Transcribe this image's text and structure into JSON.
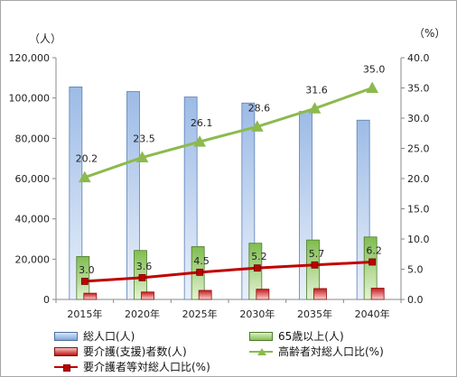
{
  "units": {
    "left": "（人）",
    "right": "（%）"
  },
  "legend": {
    "total": "総人口(人)",
    "elderly": "65歳以上(人)",
    "care": "要介護(支援)者数(人)",
    "elderly_ratio": "高齢者対総人口比(%)",
    "care_ratio": "要介護者等対総人口比(%)"
  },
  "colors": {
    "blue": "#7ea4d8",
    "green": "#86c05a",
    "red": "#c01010",
    "line_green": "#8cba4e",
    "line_red": "#c00000"
  },
  "chart_data": {
    "type": "bar",
    "categories": [
      "2015年",
      "2020年",
      "2025年",
      "2030年",
      "2035年",
      "2040年"
    ],
    "series": [
      {
        "name": "総人口(人)",
        "axis": "left",
        "values": [
          105500,
          103200,
          100500,
          97500,
          93300,
          89000
        ]
      },
      {
        "name": "65歳以上(人)",
        "axis": "left",
        "values": [
          21300,
          24300,
          26200,
          27900,
          29500,
          31000
        ]
      },
      {
        "name": "要介護(支援)者数(人)",
        "axis": "left",
        "values": [
          3100,
          3700,
          4500,
          5100,
          5400,
          5600
        ]
      },
      {
        "name": "高齢者対総人口比(%)",
        "axis": "right",
        "type": "line",
        "values": [
          20.2,
          23.5,
          26.1,
          28.6,
          31.6,
          35.0
        ],
        "labels": [
          "20.2",
          "23.5",
          "26.1",
          "28.6",
          "31.6",
          "35.0"
        ]
      },
      {
        "name": "要介護者等対総人口比(%)",
        "axis": "right",
        "type": "line",
        "values": [
          3.0,
          3.6,
          4.5,
          5.2,
          5.7,
          6.2
        ],
        "labels": [
          "3.0",
          "3.6",
          "4.5",
          "5.2",
          "5.7",
          "6.2"
        ]
      }
    ],
    "yleft": {
      "ylim": [
        0,
        120000
      ],
      "ticks": [
        "0",
        "20,000",
        "40,000",
        "60,000",
        "80,000",
        "100,000",
        "120,000"
      ]
    },
    "yright": {
      "ylim": [
        0,
        40
      ],
      "ticks": [
        "0.0",
        "5.0",
        "10.0",
        "15.0",
        "20.0",
        "25.0",
        "30.0",
        "35.0",
        "40.0"
      ]
    },
    "grid": false,
    "legend_position": "bottom"
  }
}
